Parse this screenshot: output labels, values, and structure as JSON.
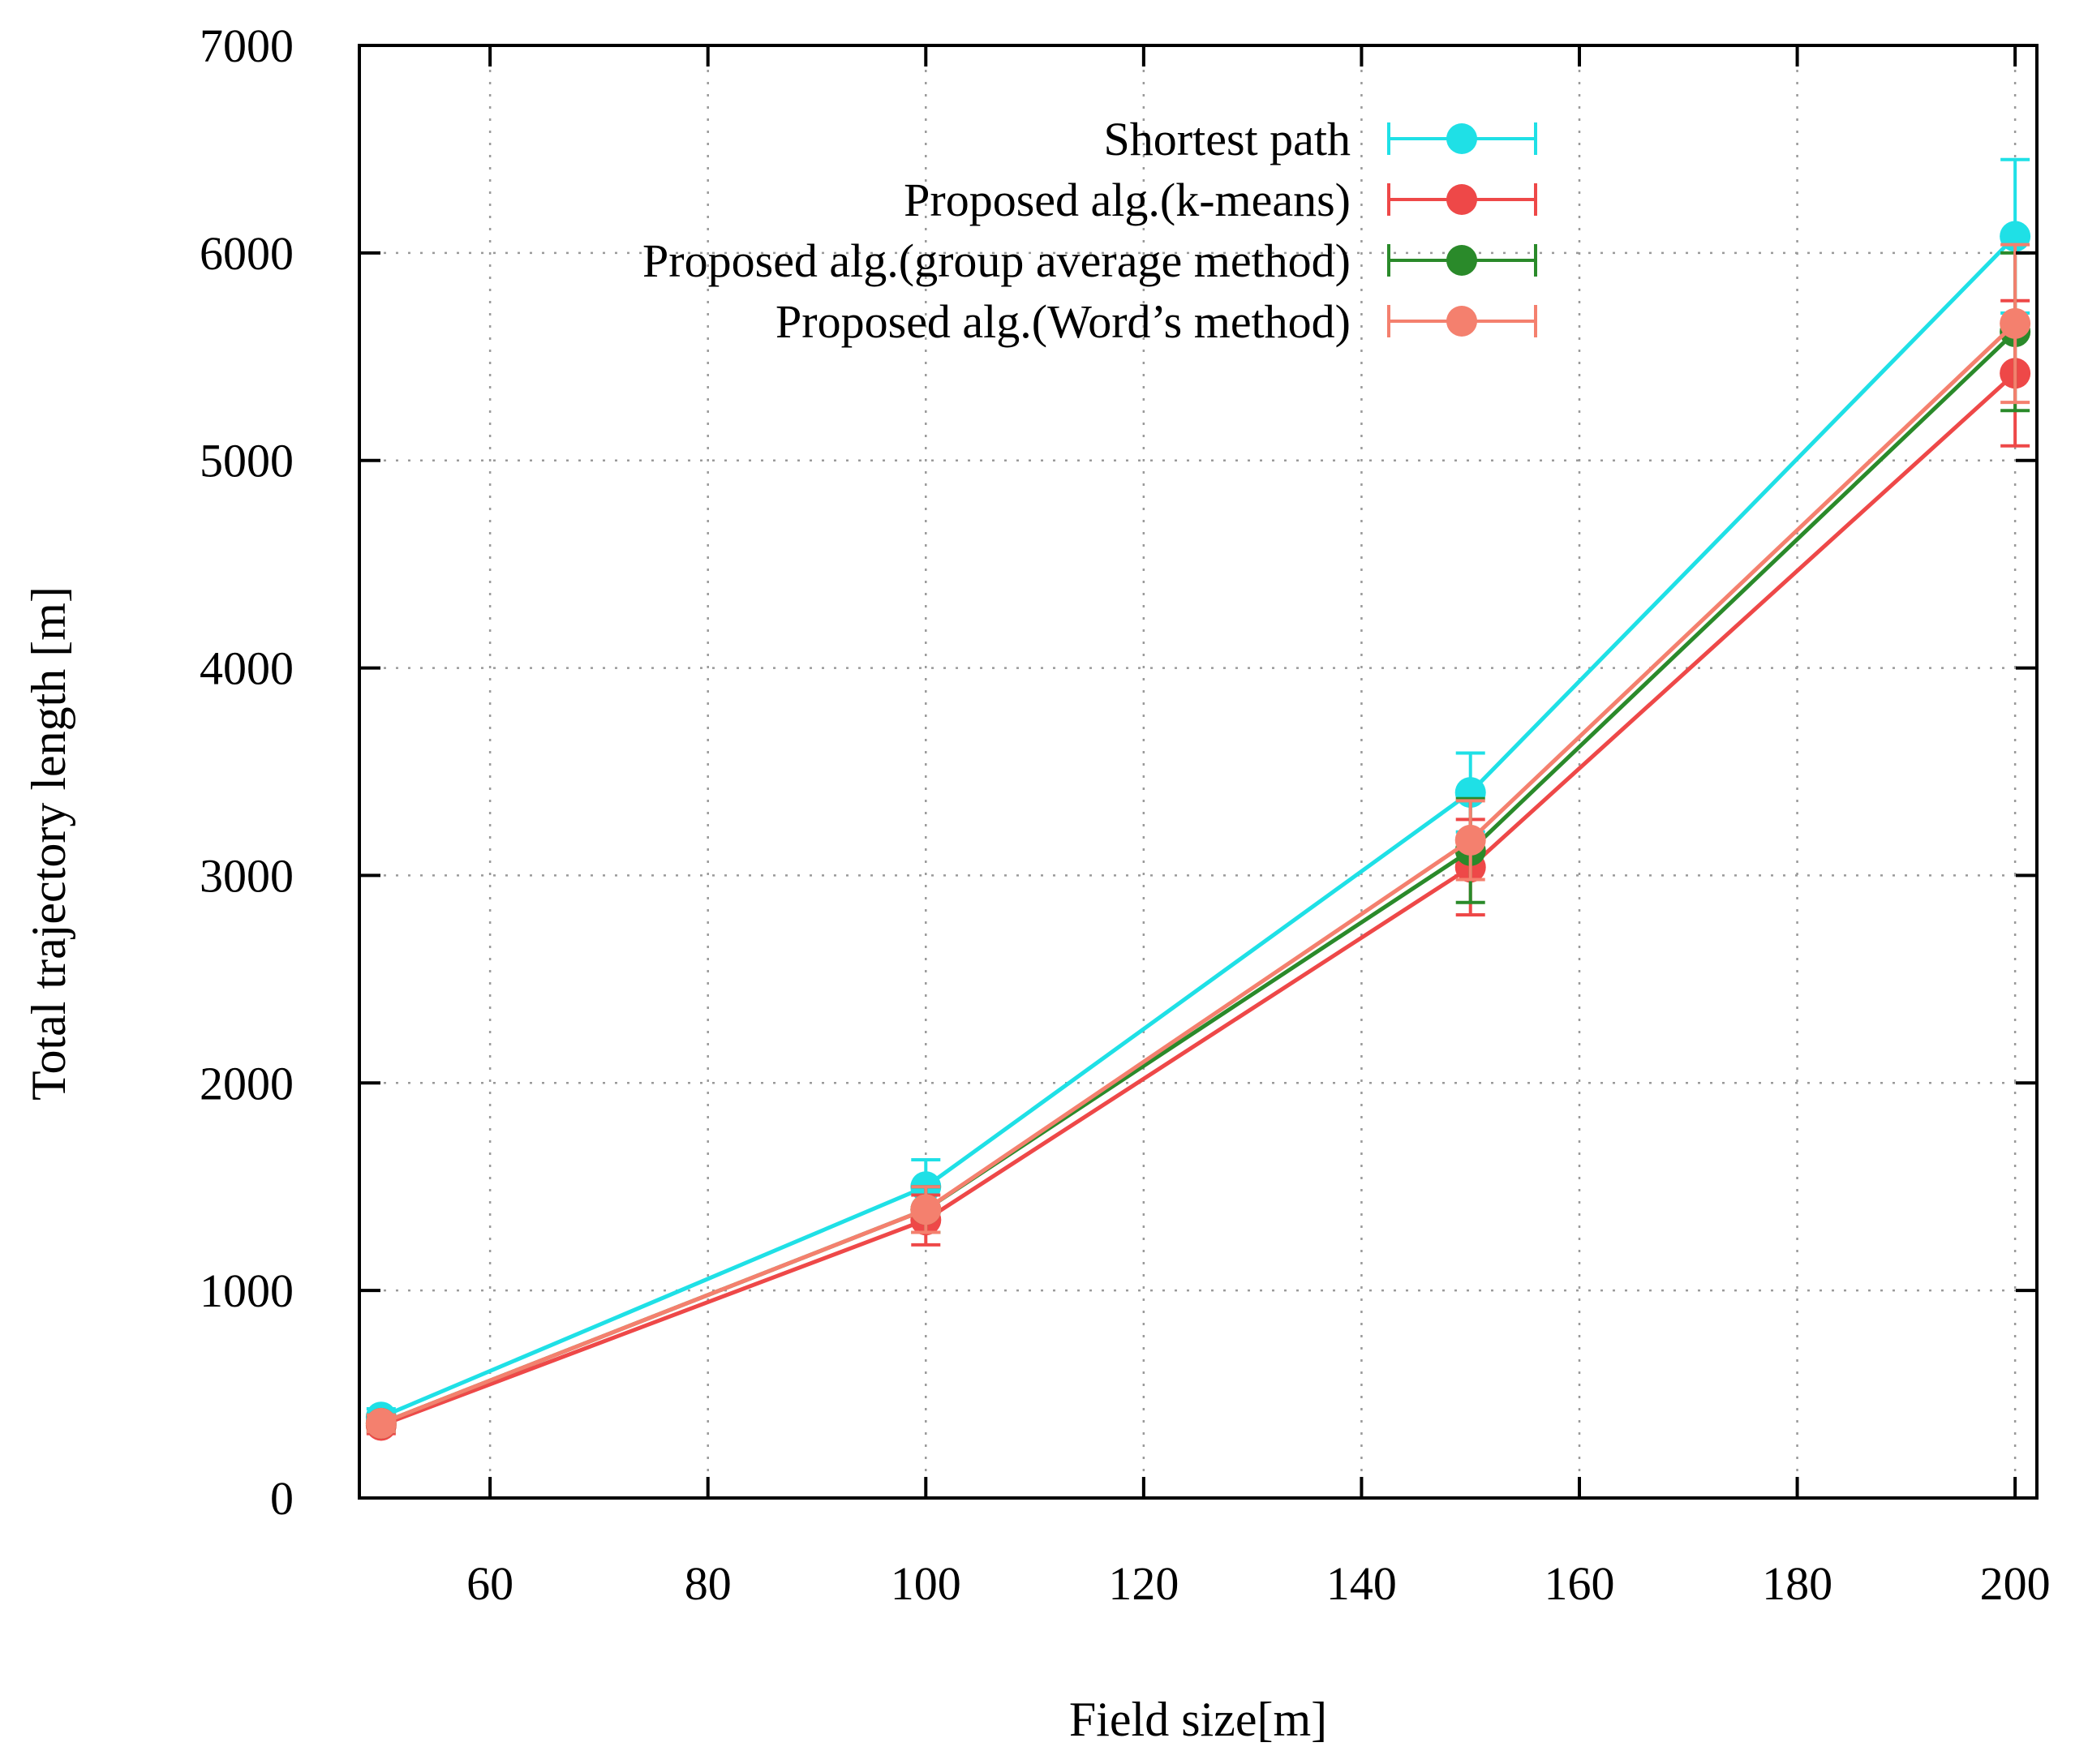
{
  "chart_data": {
    "type": "line",
    "title": "",
    "xlabel": "Field size[m]",
    "ylabel": "Total trajectory length [m]",
    "xlim": [
      48,
      202
    ],
    "ylim": [
      0,
      7000
    ],
    "xticks": [
      60,
      80,
      100,
      120,
      140,
      160,
      180,
      200
    ],
    "yticks": [
      0,
      1000,
      2000,
      3000,
      4000,
      5000,
      6000,
      7000
    ],
    "grid": true,
    "legend_position": "top-right",
    "x": [
      50,
      100,
      150,
      200
    ],
    "series": [
      {
        "name": "Shortest path",
        "color": "#1fe0e6",
        "values": [
          390,
          1500,
          3400,
          6080
        ],
        "errors": [
          40,
          130,
          190,
          370
        ]
      },
      {
        "name": "Proposed alg.(k-means)",
        "color": "#ee4848",
        "values": [
          350,
          1340,
          3040,
          5420
        ],
        "errors": [
          40,
          120,
          230,
          350
        ]
      },
      {
        "name": "Proposed alg.(group average method)",
        "color": "#2a8a2a",
        "values": [
          360,
          1390,
          3120,
          5620
        ],
        "errors": [
          40,
          110,
          250,
          380
        ]
      },
      {
        "name": "Proposed alg.(Word’s method)",
        "color": "#f4806e",
        "values": [
          360,
          1390,
          3170,
          5660
        ],
        "errors": [
          40,
          110,
          190,
          380
        ]
      }
    ]
  }
}
